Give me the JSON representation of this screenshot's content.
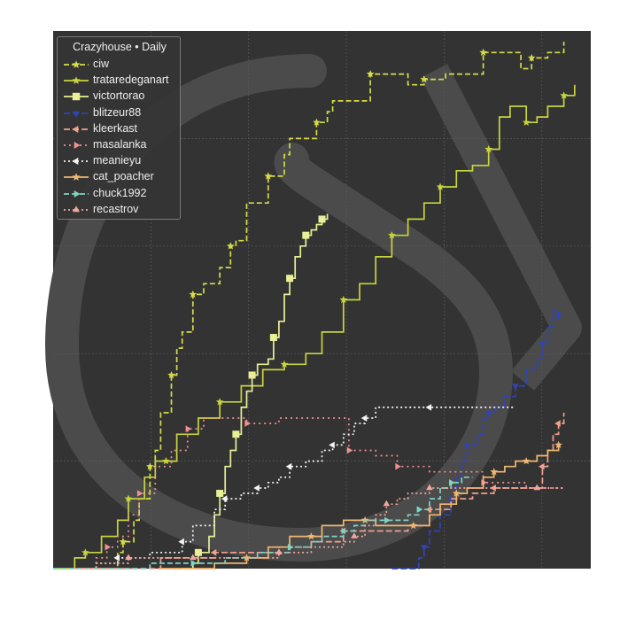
{
  "chart_data": {
    "type": "line",
    "title": "",
    "xlabel": "",
    "ylabel": "",
    "grid": true,
    "legend": {
      "title": "Crazyhouse • Daily",
      "placement": "top-left"
    },
    "xlim": [
      0,
      100
    ],
    "ylim": [
      0,
      100
    ],
    "background_color": "#333333",
    "series": [
      {
        "name": "ciw",
        "color": "#d4dc4a",
        "dash": "6,3",
        "marker": "star",
        "x": [
          8,
          12,
          13,
          15,
          16,
          18,
          19,
          20,
          22,
          23,
          24,
          26,
          28,
          31,
          33,
          34,
          36,
          40,
          43,
          44,
          49,
          51,
          52,
          59,
          62,
          66,
          69,
          72,
          73,
          80,
          83,
          87,
          89,
          92,
          95
        ],
        "y": [
          0,
          3,
          5,
          9,
          13,
          19,
          22,
          29,
          36,
          41,
          44,
          51,
          53,
          56,
          60,
          61,
          68,
          73,
          77,
          80,
          83,
          85,
          87,
          92,
          92,
          90,
          91,
          91,
          92,
          96,
          96,
          93,
          95,
          96,
          98
        ]
      },
      {
        "name": "trataredeganart",
        "color": "#c8d43e",
        "dash": "",
        "marker": "star",
        "x": [
          0,
          4,
          6,
          9,
          12,
          14,
          17,
          19,
          21,
          23,
          27,
          31,
          35,
          39,
          43,
          47,
          50,
          54,
          57,
          60,
          63,
          66,
          69,
          72,
          75,
          78,
          81,
          83,
          85,
          88,
          90,
          92,
          95,
          97
        ],
        "y": [
          0,
          2,
          3,
          6,
          9,
          13,
          17,
          20,
          20,
          25,
          28,
          31,
          34,
          37,
          38,
          40,
          44,
          50,
          53,
          58,
          62,
          65,
          68,
          71,
          74,
          75,
          78,
          84,
          86,
          83,
          84,
          86,
          88,
          90
        ]
      },
      {
        "name": "victortorao",
        "color": "#e8ef96",
        "dash": "",
        "marker": "square",
        "x": [
          24,
          26,
          27,
          29,
          30,
          31,
          32,
          33,
          34,
          35,
          36,
          37,
          38,
          40,
          41,
          42,
          43,
          44,
          45,
          46,
          47,
          48,
          49,
          50,
          51
        ],
        "y": [
          0,
          1,
          3,
          6,
          10,
          14,
          19,
          22,
          25,
          30,
          33,
          36,
          38,
          39,
          43,
          46,
          51,
          54,
          58,
          60,
          62,
          63,
          64,
          65,
          66
        ]
      },
      {
        "name": "blitzeur88",
        "color": "#2f44b8",
        "dash": "7,3",
        "marker": "tri-down",
        "x": [
          63,
          68,
          69,
          70,
          72,
          74,
          75,
          76,
          77,
          79,
          80,
          81,
          82,
          84,
          86,
          88,
          90,
          91,
          92,
          93,
          94
        ],
        "y": [
          0,
          2,
          4,
          7,
          10,
          13,
          17,
          20,
          23,
          25,
          28,
          29,
          30,
          32,
          34,
          37,
          39,
          42,
          45,
          48,
          47
        ]
      },
      {
        "name": "kleerkast",
        "color": "#f3a08c",
        "dash": "7,3",
        "marker": "tri-left",
        "x": [
          3,
          20,
          30,
          42,
          48,
          54,
          60,
          66,
          70,
          74,
          78,
          82,
          86,
          90,
          91,
          92,
          93,
          94,
          95,
          95
        ],
        "y": [
          0,
          2,
          3,
          4,
          5,
          7,
          7,
          8,
          11,
          13,
          14,
          15,
          15,
          15,
          19,
          22,
          25,
          27,
          28,
          29
        ]
      },
      {
        "name": "masalanka",
        "color": "#f09090",
        "dash": "2,4",
        "marker": "tri-right",
        "x": [
          4,
          8,
          10,
          12,
          14,
          16,
          19,
          22,
          25,
          28,
          31,
          36,
          42,
          50,
          55,
          60,
          62,
          64,
          70,
          76,
          80,
          88,
          95
        ],
        "y": [
          0,
          2,
          4,
          6,
          10,
          14,
          19,
          22,
          26,
          28,
          28,
          27,
          28,
          28,
          22,
          21,
          21,
          19,
          18,
          18,
          16,
          15,
          15
        ]
      },
      {
        "name": "meanieyu",
        "color": "#f4f4f4",
        "dash": "2,3",
        "marker": "tri-left",
        "x": [
          4,
          8,
          12,
          18,
          22,
          24,
          26,
          30,
          32,
          35,
          37,
          38,
          40,
          42,
          44,
          47,
          50,
          52,
          54,
          56,
          58,
          60,
          63,
          70,
          80,
          86
        ],
        "y": [
          0,
          1,
          2,
          3,
          3,
          5,
          8,
          11,
          13,
          14,
          14,
          15,
          16,
          17,
          19,
          20,
          22,
          23,
          25,
          27,
          28,
          30,
          30,
          30,
          30,
          30
        ]
      },
      {
        "name": "cat_poacher",
        "color": "#f2b870",
        "dash": "",
        "marker": "star",
        "x": [
          20,
          30,
          36,
          40,
          44,
          48,
          50,
          54,
          58,
          60,
          63,
          67,
          70,
          72,
          75,
          77,
          80,
          82,
          84,
          86,
          88,
          90,
          92,
          94
        ],
        "y": [
          0,
          1,
          2,
          4,
          6,
          6,
          8,
          9,
          9,
          8,
          8,
          8,
          10,
          12,
          14,
          15,
          17,
          18,
          19,
          20,
          20,
          21,
          22,
          23
        ]
      },
      {
        "name": "chuck1992",
        "color": "#7fd3c4",
        "dash": "6,3",
        "marker": "tri-right",
        "x": [
          0,
          18,
          26,
          32,
          38,
          44,
          48,
          50,
          54,
          56,
          58,
          62,
          64,
          66,
          68,
          70,
          72,
          74,
          76,
          78
        ],
        "y": [
          0,
          1,
          1,
          2,
          3,
          4,
          5,
          6,
          7,
          8,
          9,
          9,
          9,
          10,
          11,
          13,
          15,
          16,
          17,
          17
        ]
      },
      {
        "name": "recastrov",
        "color": "#f1a79d",
        "dash": "2,3",
        "marker": "tri-up",
        "x": [
          4,
          8,
          14,
          18,
          22,
          26,
          30,
          36,
          42,
          48,
          54,
          56,
          58,
          60,
          62,
          64,
          66,
          70,
          76,
          82,
          90,
          95
        ],
        "y": [
          0,
          1,
          2,
          2,
          2,
          2,
          2,
          2,
          3,
          4,
          5,
          6,
          8,
          10,
          12,
          13,
          14,
          15,
          15,
          15,
          15,
          15
        ]
      }
    ]
  }
}
